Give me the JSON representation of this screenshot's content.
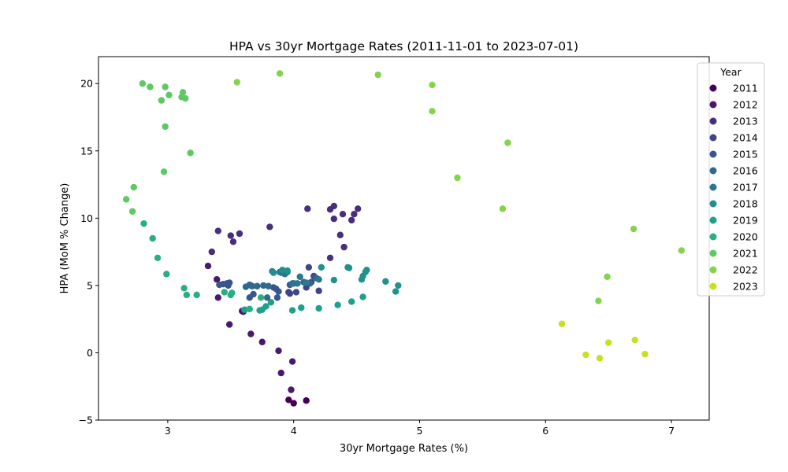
{
  "chart_data": {
    "type": "scatter",
    "title": "HPA vs 30yr Mortgage Rates (2011-11-01 to 2023-07-01)",
    "xlabel": "30yr Mortgage Rates (%)",
    "ylabel": "HPA (MoM % Change)",
    "xlim": [
      2.45,
      7.3
    ],
    "ylim": [
      -5,
      22
    ],
    "xticks": [
      3,
      4,
      5,
      6,
      7
    ],
    "yticks": [
      -5,
      0,
      5,
      10,
      15,
      20
    ],
    "grid": false,
    "legend": {
      "title": "Year",
      "placement": "top-right"
    },
    "series": [
      {
        "name": "2011",
        "color": "#440154",
        "points": [
          [
            3.96,
            -3.5
          ],
          [
            4.0,
            -3.75
          ],
          [
            4.1,
            -3.55
          ]
        ]
      },
      {
        "name": "2012",
        "color": "#481a6c",
        "points": [
          [
            3.88,
            0.15
          ],
          [
            3.99,
            -0.65
          ],
          [
            3.9,
            -1.5
          ],
          [
            3.98,
            -2.75
          ],
          [
            3.75,
            0.8
          ],
          [
            3.66,
            1.4
          ],
          [
            3.49,
            2.1
          ],
          [
            3.4,
            4.1
          ],
          [
            3.39,
            5.45
          ],
          [
            3.32,
            6.45
          ],
          [
            3.59,
            3.1
          ],
          [
            3.6,
            3.05
          ]
        ]
      },
      {
        "name": "2013",
        "color": "#472f7d",
        "points": [
          [
            3.35,
            7.5
          ],
          [
            3.4,
            9.05
          ],
          [
            3.5,
            8.7
          ],
          [
            3.52,
            8.25
          ],
          [
            3.57,
            8.85
          ],
          [
            3.81,
            9.35
          ],
          [
            4.11,
            10.7
          ],
          [
            4.29,
            10.65
          ],
          [
            4.32,
            10.9
          ],
          [
            4.32,
            9.95
          ],
          [
            4.39,
            10.3
          ],
          [
            4.46,
            9.85
          ],
          [
            4.48,
            10.3
          ],
          [
            4.51,
            10.7
          ],
          [
            4.37,
            8.75
          ],
          [
            4.4,
            7.85
          ],
          [
            4.29,
            7.05
          ]
        ]
      },
      {
        "name": "2014",
        "color": "#414487",
        "points": [
          [
            4.12,
            6.35
          ],
          [
            4.16,
            5.7
          ],
          [
            4.2,
            4.6
          ],
          [
            4.1,
            4.85
          ],
          [
            4.14,
            5.25
          ],
          [
            4.0,
            5.15
          ],
          [
            3.96,
            4.5
          ],
          [
            3.97,
            4.4
          ],
          [
            4.02,
            4.5
          ]
        ]
      },
      {
        "name": "2015",
        "color": "#39568c",
        "points": [
          [
            3.41,
            5.05
          ],
          [
            3.44,
            5.1
          ],
          [
            3.47,
            5.15
          ],
          [
            3.48,
            5.0
          ],
          [
            3.49,
            5.2
          ],
          [
            3.65,
            4.1
          ],
          [
            3.68,
            4.35
          ],
          [
            3.86,
            4.75
          ],
          [
            3.87,
            4.1
          ],
          [
            3.88,
            4.55
          ],
          [
            3.97,
            5.05
          ],
          [
            3.84,
            4.85
          ]
        ]
      },
      {
        "name": "2016",
        "color": "#31688e",
        "points": [
          [
            3.62,
            4.9
          ],
          [
            3.66,
            5.0
          ],
          [
            3.67,
            4.95
          ],
          [
            3.71,
            4.95
          ],
          [
            3.76,
            5.0
          ],
          [
            3.79,
            4.1
          ],
          [
            3.8,
            4.95
          ],
          [
            4.08,
            5.25
          ],
          [
            4.13,
            5.15
          ],
          [
            4.18,
            5.55
          ],
          [
            3.65,
            5.05
          ]
        ]
      },
      {
        "name": "2017",
        "color": "#2a788e",
        "points": [
          [
            3.83,
            6.05
          ],
          [
            3.89,
            6.0
          ],
          [
            3.9,
            5.95
          ],
          [
            3.95,
            6.0
          ],
          [
            3.99,
            5.15
          ],
          [
            4.03,
            5.15
          ],
          [
            4.05,
            5.65
          ],
          [
            4.2,
            5.45
          ],
          [
            4.1,
            5.2
          ],
          [
            3.93,
            5.85
          ]
        ]
      },
      {
        "name": "2018",
        "color": "#21918c",
        "points": [
          [
            3.84,
            5.95
          ],
          [
            3.91,
            6.15
          ],
          [
            3.95,
            6.1
          ],
          [
            4.22,
            6.35
          ],
          [
            4.32,
            5.4
          ],
          [
            4.43,
            6.35
          ],
          [
            4.44,
            6.3
          ],
          [
            4.54,
            5.45
          ],
          [
            4.55,
            5.7
          ],
          [
            4.57,
            6.0
          ],
          [
            4.58,
            6.15
          ],
          [
            4.81,
            4.55
          ],
          [
            4.83,
            5.0
          ],
          [
            4.73,
            5.3
          ]
        ]
      },
      {
        "name": "2019",
        "color": "#1fa088",
        "points": [
          [
            3.99,
            3.15
          ],
          [
            3.73,
            3.15
          ],
          [
            3.75,
            3.2
          ],
          [
            3.78,
            3.45
          ],
          [
            3.82,
            3.75
          ],
          [
            4.06,
            3.35
          ],
          [
            4.2,
            3.3
          ],
          [
            4.35,
            3.55
          ],
          [
            4.46,
            3.8
          ],
          [
            4.55,
            4.15
          ],
          [
            3.61,
            3.2
          ]
        ]
      },
      {
        "name": "2020",
        "color": "#28ae80",
        "points": [
          [
            3.45,
            4.5
          ],
          [
            3.5,
            4.3
          ],
          [
            3.51,
            4.45
          ],
          [
            3.74,
            4.1
          ],
          [
            3.65,
            3.25
          ],
          [
            3.13,
            4.8
          ],
          [
            3.15,
            4.3
          ],
          [
            3.23,
            4.3
          ],
          [
            2.99,
            5.85
          ],
          [
            2.92,
            7.05
          ],
          [
            2.88,
            8.5
          ],
          [
            2.81,
            9.6
          ]
        ]
      },
      {
        "name": "2021",
        "color": "#5ec962",
        "points": [
          [
            2.73,
            12.3
          ],
          [
            2.72,
            10.5
          ],
          [
            2.67,
            11.4
          ],
          [
            2.97,
            13.45
          ],
          [
            2.98,
            16.8
          ],
          [
            3.18,
            14.85
          ],
          [
            2.8,
            20.0
          ],
          [
            2.86,
            19.75
          ],
          [
            2.98,
            19.75
          ],
          [
            3.01,
            19.15
          ],
          [
            3.11,
            19.0
          ],
          [
            3.12,
            19.35
          ],
          [
            3.14,
            18.9
          ],
          [
            2.95,
            18.75
          ]
        ]
      },
      {
        "name": "2022",
        "color": "#84d44b",
        "points": [
          [
            3.55,
            20.1
          ],
          [
            3.89,
            20.75
          ],
          [
            4.67,
            20.65
          ],
          [
            5.1,
            19.9
          ],
          [
            5.1,
            17.95
          ],
          [
            5.7,
            15.6
          ],
          [
            5.3,
            13.0
          ],
          [
            5.66,
            10.7
          ],
          [
            6.7,
            9.2
          ],
          [
            7.08,
            7.6
          ],
          [
            6.49,
            5.65
          ],
          [
            6.42,
            3.85
          ]
        ]
      },
      {
        "name": "2023",
        "color": "#c8e020",
        "points": [
          [
            6.13,
            2.15
          ],
          [
            6.32,
            -0.15
          ],
          [
            6.43,
            -0.4
          ],
          [
            6.5,
            0.75
          ],
          [
            6.71,
            0.95
          ],
          [
            6.79,
            -0.1
          ]
        ]
      }
    ]
  }
}
